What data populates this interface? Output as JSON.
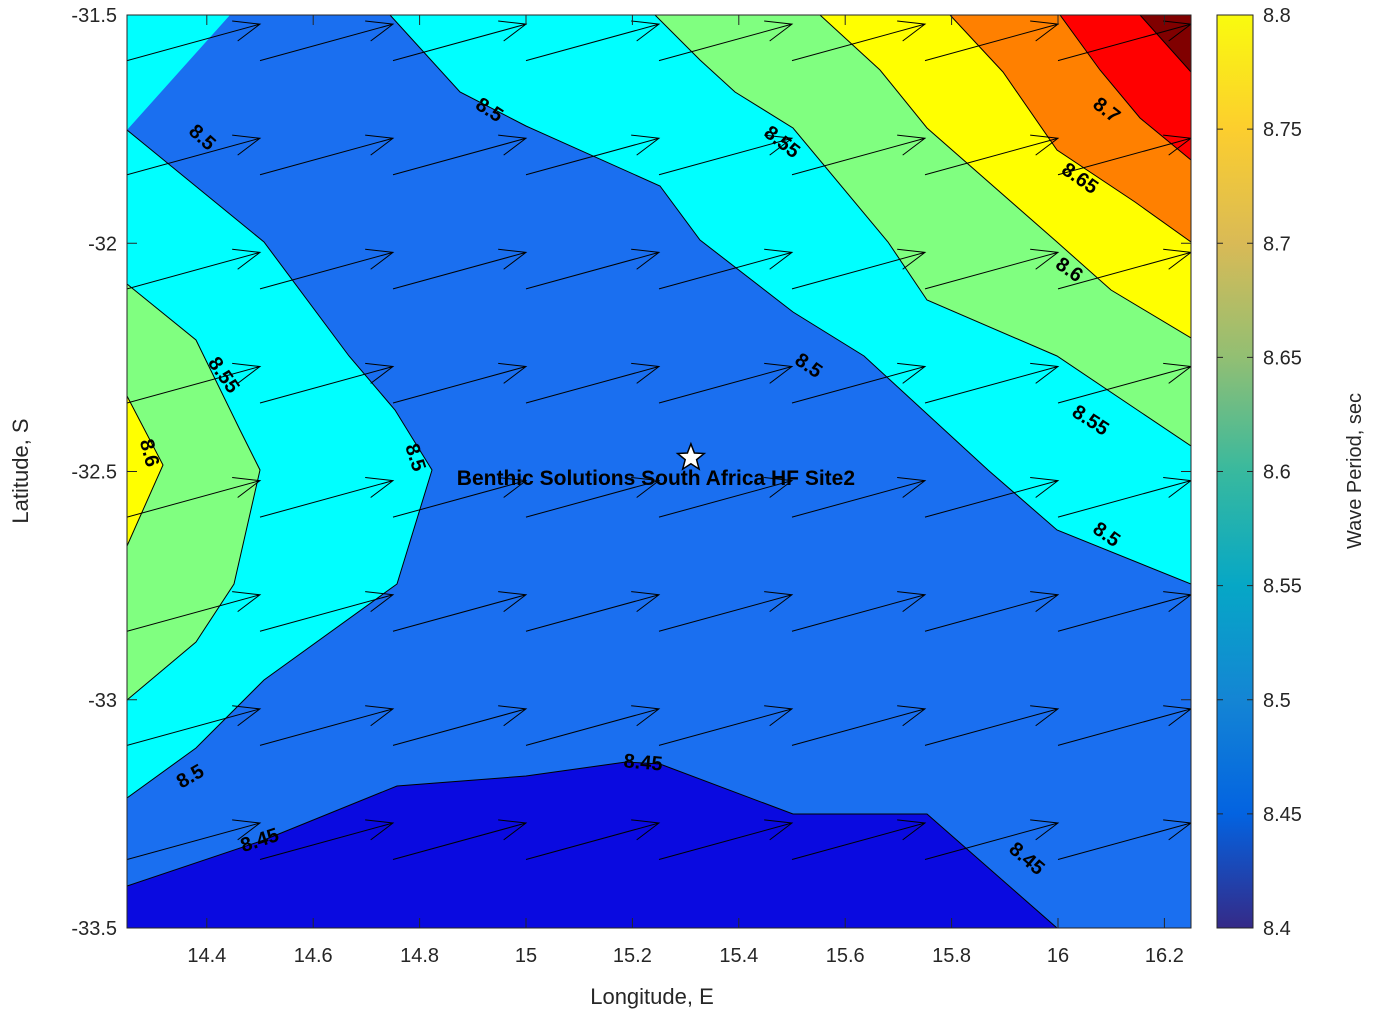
{
  "chart_data": {
    "type": "contour",
    "xlabel": "Longitude, E",
    "ylabel": "Latitude, S",
    "colorbar_label": "Wave Period, sec",
    "xlim": [
      14.25,
      16.25
    ],
    "ylim": [
      -33.5,
      -31.5
    ],
    "clim": [
      8.4,
      8.8
    ],
    "x_ticks": [
      "14.4",
      "14.6",
      "14.8",
      "15",
      "15.2",
      "15.4",
      "15.6",
      "15.8",
      "16",
      "16.2"
    ],
    "y_ticks": [
      "-31.5",
      "-32",
      "-32.5",
      "-33",
      "-33.5"
    ],
    "colorbar_ticks": [
      "8.4",
      "8.45",
      "8.5",
      "8.55",
      "8.6",
      "8.65",
      "8.7",
      "8.75",
      "8.8"
    ],
    "levels": [
      8.4,
      8.45,
      8.5,
      8.55,
      8.6,
      8.65,
      8.7,
      8.75,
      8.8
    ],
    "level_colors": [
      "#0a0ae0",
      "#1a6ff0",
      "#00ffff",
      "#80ff80",
      "#ffff00",
      "#ff8000",
      "#ff0000",
      "#800000"
    ],
    "colormap": [
      "#352a87",
      "#0363e1",
      "#1485d4",
      "#06a7c6",
      "#38b99e",
      "#92bf73",
      "#d9ba56",
      "#fcce2e",
      "#f9fb0e"
    ],
    "contour_labels": [
      {
        "text": "8.5",
        "lon": 14.39,
        "lat": -31.77,
        "angle": 42
      },
      {
        "text": "8.5",
        "lon": 14.93,
        "lat": -31.71,
        "angle": 33
      },
      {
        "text": "8.55",
        "lon": 15.48,
        "lat": -31.78,
        "angle": 38
      },
      {
        "text": "8.7",
        "lon": 16.09,
        "lat": -31.71,
        "angle": 38
      },
      {
        "text": "8.65",
        "lon": 16.04,
        "lat": -31.86,
        "angle": 35
      },
      {
        "text": "8.6",
        "lon": 16.02,
        "lat": -32.06,
        "angle": 35
      },
      {
        "text": "8.55",
        "lon": 14.43,
        "lat": -32.29,
        "angle": 55
      },
      {
        "text": "8.6",
        "lon": 14.29,
        "lat": -32.46,
        "angle": 75
      },
      {
        "text": "8.5",
        "lon": 14.79,
        "lat": -32.47,
        "angle": 72
      },
      {
        "text": "8.5",
        "lon": 15.53,
        "lat": -32.27,
        "angle": 35
      },
      {
        "text": "8.55",
        "lon": 16.06,
        "lat": -32.39,
        "angle": 33
      },
      {
        "text": "8.5",
        "lon": 16.09,
        "lat": -32.64,
        "angle": 35
      },
      {
        "text": "8.5",
        "lon": 14.37,
        "lat": -33.17,
        "angle": -30
      },
      {
        "text": "8.45",
        "lon": 14.5,
        "lat": -33.31,
        "angle": -18
      },
      {
        "text": "8.45",
        "lon": 15.22,
        "lat": -33.14,
        "angle": 5
      },
      {
        "text": "8.45",
        "lon": 15.94,
        "lat": -33.35,
        "angle": 40
      }
    ],
    "site": {
      "name": "Benthic Solutions South Africa HF Site2",
      "lon": 15.31,
      "lat": -32.47
    },
    "vectors": {
      "lon_start": 14.25,
      "lon_step": 0.25,
      "lat_start": -31.6,
      "lat_step": -0.25,
      "cols": 8,
      "rows": 8,
      "u": 0.25,
      "v": 0.08
    }
  }
}
